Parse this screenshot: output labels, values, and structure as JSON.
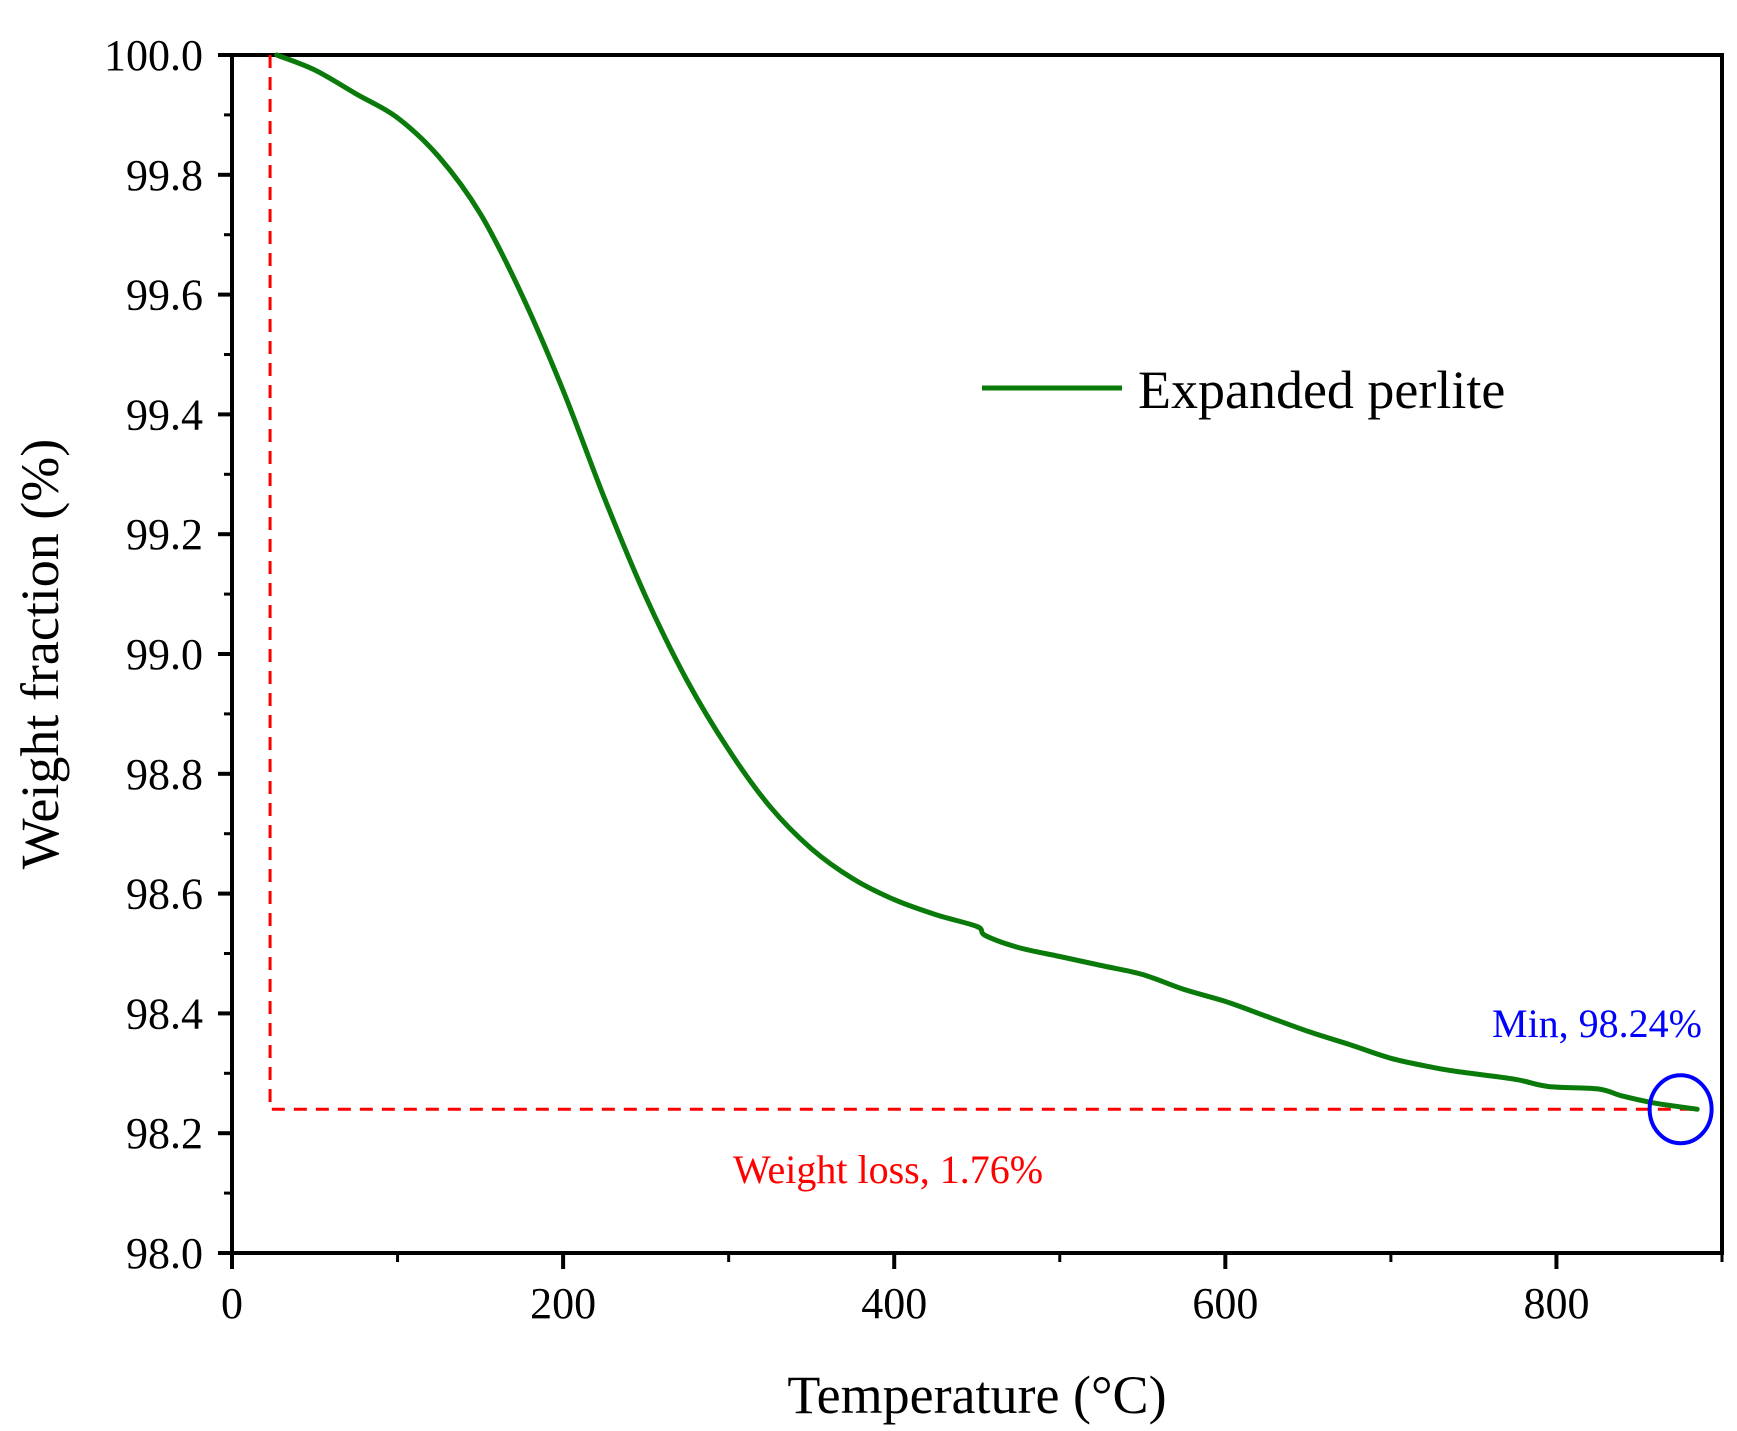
{
  "chart_data": {
    "type": "line",
    "title": "",
    "xlabel": "Temperature (°C)",
    "ylabel": "Weight fraction (%)",
    "xlim": [
      0,
      900
    ],
    "ylim": [
      98.0,
      100.0
    ],
    "x_ticks": [
      0,
      200,
      400,
      600,
      800
    ],
    "x_tick_labels": [
      "0",
      "200",
      "400",
      "600",
      "800"
    ],
    "y_ticks": [
      98.0,
      98.2,
      98.4,
      98.6,
      98.8,
      99.0,
      99.2,
      99.4,
      99.6,
      99.8,
      100.0
    ],
    "y_tick_labels": [
      "98.0",
      "98.2",
      "98.4",
      "98.6",
      "98.8",
      "99.0",
      "99.2",
      "99.4",
      "99.6",
      "99.8",
      "100.0"
    ],
    "grid": false,
    "legend_position": "upper-right",
    "series": [
      {
        "name": "Expanded perlite",
        "color": "#0a7a0a",
        "x": [
          27,
          50,
          75,
          100,
          125,
          150,
          175,
          200,
          225,
          250,
          275,
          300,
          325,
          350,
          375,
          400,
          425,
          450,
          455,
          475,
          500,
          525,
          550,
          575,
          600,
          625,
          650,
          675,
          700,
          725,
          740,
          775,
          795,
          825,
          840,
          860,
          885
        ],
        "y": [
          100.0,
          99.975,
          99.935,
          99.895,
          99.83,
          99.735,
          99.6,
          99.44,
          99.26,
          99.095,
          98.955,
          98.84,
          98.745,
          98.675,
          98.625,
          98.59,
          98.565,
          98.545,
          98.53,
          98.51,
          98.495,
          98.48,
          98.465,
          98.44,
          98.42,
          98.395,
          98.37,
          98.348,
          98.325,
          98.31,
          98.303,
          98.29,
          98.278,
          98.274,
          98.262,
          98.25,
          98.24
        ]
      }
    ],
    "annotations": {
      "weight_loss": {
        "text": "Weight loss, 1.76%",
        "color": "#ff0000",
        "start_x": 23,
        "end_x": 885,
        "min_y": 98.24,
        "max_y": 100.0
      },
      "min_marker": {
        "text": "Min, 98.24%",
        "color": "#0000ff",
        "x": 875,
        "y": 98.24
      }
    }
  }
}
